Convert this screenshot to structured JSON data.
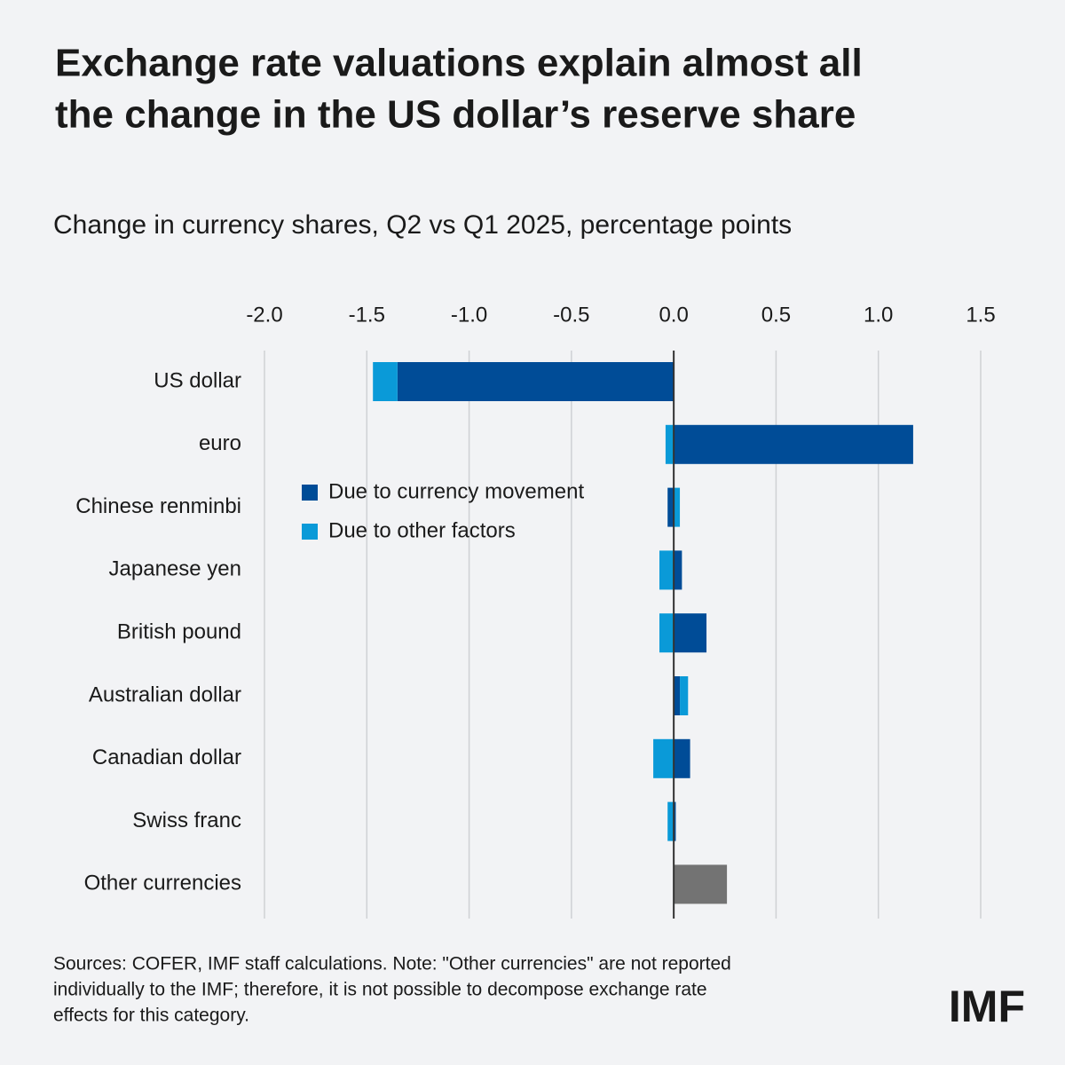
{
  "chart_data": {
    "type": "bar",
    "orientation": "horizontal",
    "stacked": true,
    "title": [
      "Exchange rate valuations explain almost all",
      "the change in the US dollar’s reserve share"
    ],
    "subtitle": "Change in currency shares, Q2 vs Q1 2025, percentage points",
    "categories": [
      "US dollar",
      "euro",
      "Chinese renminbi",
      "Japanese yen",
      "British pound",
      "Australian dollar",
      "Canadian dollar",
      "Swiss franc",
      "Other currencies"
    ],
    "series": [
      {
        "name": "Due to currency movement",
        "color": "#004c97",
        "values": [
          -1.35,
          1.17,
          -0.03,
          0.04,
          0.16,
          0.03,
          0.08,
          0.01,
          null
        ]
      },
      {
        "name": "Due to other factors",
        "color": "#0a9ad8",
        "values": [
          -0.12,
          -0.04,
          0.03,
          -0.07,
          -0.07,
          0.04,
          -0.1,
          -0.03,
          null
        ]
      },
      {
        "color": "#737373",
        "values": [
          null,
          null,
          null,
          null,
          null,
          null,
          null,
          null,
          0.26
        ]
      }
    ],
    "xlim": [
      -2,
      1.5
    ],
    "xticks": [
      {
        "value": -2,
        "label": "-2.0"
      },
      -1.5,
      {
        "value": -1,
        "label": "-1.0"
      },
      -0.5,
      {
        "value": 0,
        "label": "0.0"
      },
      0.5,
      {
        "value": 1,
        "label": "1.0"
      },
      1.5
    ],
    "grid": true,
    "legend": "center-left",
    "note": [
      "Sources: COFER, IMF staff calculations. Note: \"Other currencies\" are not reported",
      "individually to the IMF; therefore, it is not possible to decompose exchange rate",
      "effects for this category."
    ]
  },
  "logo": "IMF"
}
